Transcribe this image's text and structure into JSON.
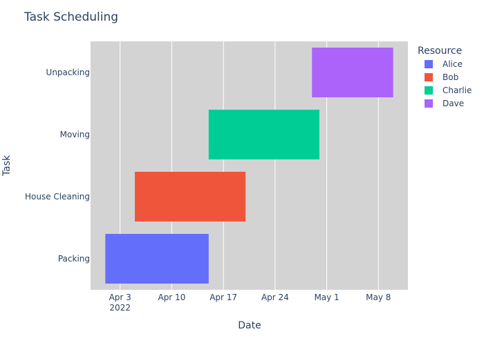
{
  "chart_data": {
    "type": "gantt",
    "title": "Task Scheduling",
    "xlabel": "Date",
    "ylabel": "Task",
    "x_range": [
      "2022-03-30",
      "2022-05-12"
    ],
    "x_ticks": [
      {
        "date": "2022-04-03",
        "label": "Apr 3",
        "sublabel": "2022"
      },
      {
        "date": "2022-04-10",
        "label": "Apr 10",
        "sublabel": ""
      },
      {
        "date": "2022-04-17",
        "label": "Apr 17",
        "sublabel": ""
      },
      {
        "date": "2022-04-24",
        "label": "Apr 24",
        "sublabel": ""
      },
      {
        "date": "2022-05-01",
        "label": "May 1",
        "sublabel": ""
      },
      {
        "date": "2022-05-08",
        "label": "May 8",
        "sublabel": ""
      }
    ],
    "categories": [
      "Packing",
      "House Cleaning",
      "Moving",
      "Unpacking"
    ],
    "tasks": [
      {
        "task": "Packing",
        "start": "2022-04-01",
        "end": "2022-04-15",
        "resource": "Alice"
      },
      {
        "task": "House Cleaning",
        "start": "2022-04-05",
        "end": "2022-04-20",
        "resource": "Bob"
      },
      {
        "task": "Moving",
        "start": "2022-04-15",
        "end": "2022-04-30",
        "resource": "Charlie"
      },
      {
        "task": "Unpacking",
        "start": "2022-04-29",
        "end": "2022-05-10",
        "resource": "Dave"
      }
    ],
    "legend": {
      "title": "Resource",
      "placement": "right",
      "items": [
        {
          "name": "Alice",
          "color": "#636efa"
        },
        {
          "name": "Bob",
          "color": "#ef553b"
        },
        {
          "name": "Charlie",
          "color": "#00cc96"
        },
        {
          "name": "Dave",
          "color": "#ab63fa"
        }
      ]
    },
    "plot_bgcolor": "#d3d3d3",
    "grid": true,
    "grid_color": "#ffffff"
  }
}
